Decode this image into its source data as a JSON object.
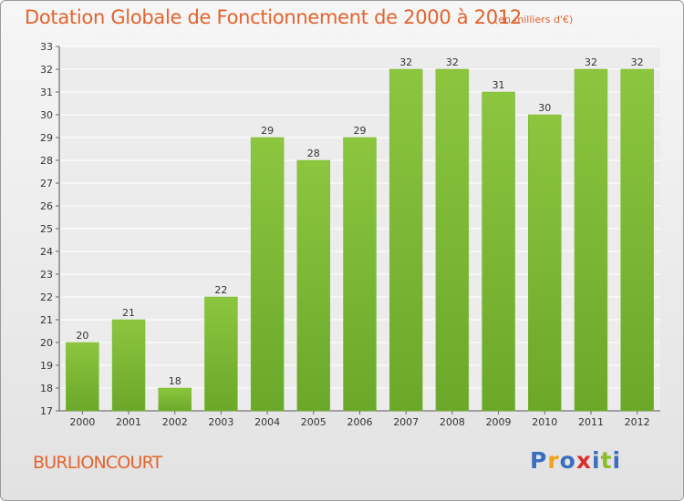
{
  "header": {
    "title": "Dotation Globale de Fonctionnement de 2000 à 2012",
    "unit": "(en milliers d'€)"
  },
  "footer": {
    "commune": "BURLIONCOURT",
    "logo": {
      "letters": [
        "P",
        "r",
        "o",
        "x",
        "i",
        "t",
        "i"
      ],
      "colors": [
        "#3a6fc0",
        "#f2a21c",
        "#3a6fc0",
        "#d9302c",
        "#3a6fc0",
        "#8bbd2a",
        "#3a6fc0"
      ]
    }
  },
  "chart_data": {
    "type": "bar",
    "title": "Dotation Globale de Fonctionnement de 2000 à 2012",
    "categories": [
      "2000",
      "2001",
      "2002",
      "2003",
      "2004",
      "2005",
      "2006",
      "2007",
      "2008",
      "2009",
      "2010",
      "2011",
      "2012"
    ],
    "values": [
      20,
      21,
      18,
      22,
      29,
      28,
      29,
      32,
      32,
      31,
      30,
      32,
      32
    ],
    "xlabel": "",
    "ylabel": "",
    "ylim": [
      17,
      33
    ],
    "yticks": [
      17,
      18,
      19,
      20,
      21,
      22,
      23,
      24,
      25,
      26,
      27,
      28,
      29,
      30,
      31,
      32,
      33
    ],
    "grid": true,
    "data_labels": true,
    "bar_color": "#8cc63f",
    "bar_color_dark": "#6ba82a"
  }
}
